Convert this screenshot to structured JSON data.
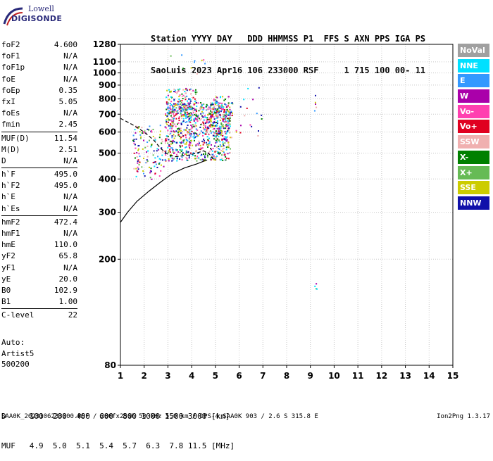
{
  "logo": {
    "line1": "Lowell",
    "line2": "DIGISONDE"
  },
  "header": {
    "line1": "Station YYYY DAY   DDD HHMMSS P1  FFS S AXN PPS IGA PS",
    "line2": "SaoLuis 2023 Apr16 106 233000 RSF     1 715 100 00- 11"
  },
  "params": [
    {
      "k": "foF2",
      "v": "4.600"
    },
    {
      "k": "foF1",
      "v": "N/A"
    },
    {
      "k": "foF1p",
      "v": "N/A"
    },
    {
      "k": "foE",
      "v": "N/A"
    },
    {
      "k": "foEp",
      "v": "0.35"
    },
    {
      "k": "fxI",
      "v": "5.05"
    },
    {
      "k": "foEs",
      "v": "N/A"
    },
    {
      "k": "fmin",
      "v": "2.45"
    },
    {
      "k": "MUF(D)",
      "v": "11.54"
    },
    {
      "k": "M(D)",
      "v": "2.51"
    },
    {
      "k": "D",
      "v": "N/A"
    },
    {
      "k": "h`F",
      "v": "495.0"
    },
    {
      "k": "h`F2",
      "v": "495.0"
    },
    {
      "k": "h`E",
      "v": "N/A"
    },
    {
      "k": "h`Es",
      "v": "N/A"
    },
    {
      "k": "hmF2",
      "v": "472.4"
    },
    {
      "k": "hmF1",
      "v": "N/A"
    },
    {
      "k": "hmE",
      "v": "110.0"
    },
    {
      "k": "yF2",
      "v": "65.8"
    },
    {
      "k": "yF1",
      "v": "N/A"
    },
    {
      "k": "yE",
      "v": "20.0"
    },
    {
      "k": "B0",
      "v": "102.9"
    },
    {
      "k": "B1",
      "v": "1.00"
    },
    {
      "k": "C-level",
      "v": "22"
    }
  ],
  "auto": {
    "line1": "Auto:",
    "line2": "Artist5",
    "line3": "500200"
  },
  "legend": [
    {
      "label": "NoVal",
      "color": "#a0a0a0"
    },
    {
      "label": "NNE",
      "color": "#00e0ff"
    },
    {
      "label": "E",
      "color": "#3399ff"
    },
    {
      "label": "W",
      "color": "#aa00aa"
    },
    {
      "label": "Vo-",
      "color": "#ff40b0"
    },
    {
      "label": "Vo+",
      "color": "#e00020"
    },
    {
      "label": "SSW",
      "color": "#f0b0b0"
    },
    {
      "label": "X-",
      "color": "#008000"
    },
    {
      "label": "X+",
      "color": "#66bb55"
    },
    {
      "label": "SSE",
      "color": "#cccc00"
    },
    {
      "label": "NNW",
      "color": "#1010aa"
    }
  ],
  "footer": {
    "d_row": "D     100  200  400  600  800 1000 1500 3000 [km]",
    "muf_row": "MUF   4.9  5.0  5.1  5.4  5.7  6.3  7.8 11.5 [MHz]",
    "info": "SAA0K_2023106233000.RSF / 280fx256h 50 kHz 5.0 km / DPS-4 SAA0K 903 / 2.6 S 315.8 E",
    "version": "Ion2Png 1.3.17"
  },
  "chart_data": {
    "type": "scatter",
    "title": "",
    "xlabel": "",
    "ylabel": "",
    "xlim": [
      1,
      15
    ],
    "ylim": [
      80,
      1280
    ],
    "x_ticks": [
      1,
      2,
      3,
      4,
      5,
      6,
      7,
      8,
      9,
      10,
      11,
      12,
      13,
      14,
      15
    ],
    "y_ticks": [
      80,
      200,
      300,
      400,
      500,
      600,
      700,
      800,
      900,
      1000,
      1100,
      1280
    ],
    "y_scale": "log",
    "grid": true,
    "traces": [
      {
        "name": "",
        "style": "dashed",
        "x": [
          1.0,
          1.5,
          2.0,
          2.4,
          2.7,
          3.0,
          3.3,
          3.8,
          4.2,
          4.5,
          4.7,
          4.8,
          4.9
        ],
        "y": [
          675,
          640,
          600,
          560,
          520,
          495,
          485,
          490,
          500,
          510,
          500,
          490,
          475
        ]
      },
      {
        "name": "",
        "style": "solid",
        "x": [
          1.0,
          1.3,
          1.7,
          2.2,
          2.7,
          3.2,
          3.7,
          4.2,
          4.6,
          4.65
        ],
        "y": [
          275,
          300,
          330,
          360,
          390,
          420,
          440,
          455,
          470,
          470
        ]
      }
    ]
  }
}
